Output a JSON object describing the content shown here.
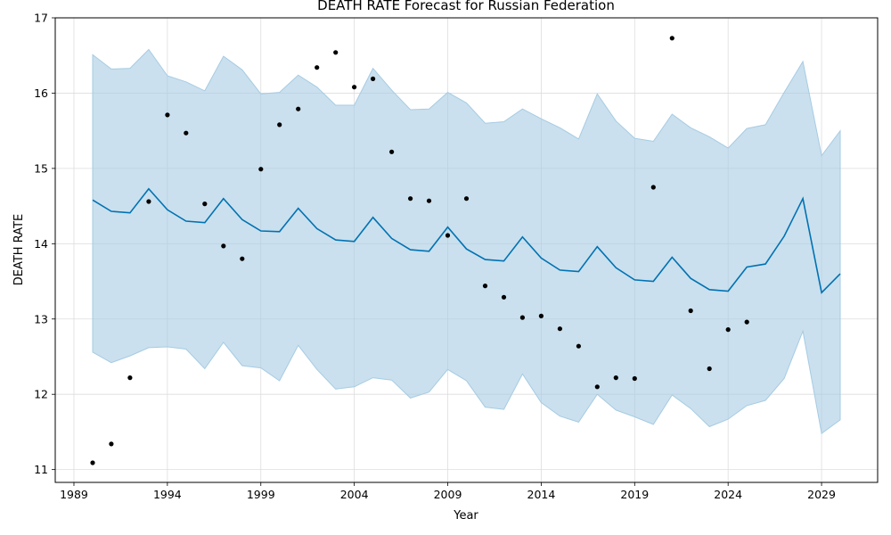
{
  "chart_data": {
    "type": "line",
    "title": "DEATH RATE Forecast for Russian Federation",
    "xlabel": "Year",
    "ylabel": "DEATH RATE",
    "xlim": [
      1988,
      2032
    ],
    "ylim": [
      10.83,
      17.0
    ],
    "x_ticks": [
      1989,
      1994,
      1999,
      2004,
      2009,
      2014,
      2019,
      2024,
      2029
    ],
    "y_ticks": [
      11,
      12,
      13,
      14,
      15,
      16,
      17
    ],
    "grid": true,
    "colors": {
      "forecast": "#0072B2",
      "band": "#a6cbe3",
      "actual": "#000000"
    },
    "series": [
      {
        "kind": "observed_points",
        "x": [
          1990,
          1991,
          1992,
          1993,
          1994,
          1995,
          1996,
          1997,
          1998,
          1999,
          2000,
          2001,
          2002,
          2003,
          2004,
          2005,
          2006,
          2007,
          2008,
          2009,
          2010,
          2011,
          2012,
          2013,
          2014,
          2015,
          2016,
          2017,
          2018,
          2019,
          2020,
          2021,
          2022,
          2023,
          2024,
          2025
        ],
        "y": [
          11.09,
          11.34,
          12.22,
          14.56,
          15.71,
          15.47,
          14.53,
          13.97,
          13.8,
          14.99,
          15.58,
          15.79,
          16.34,
          16.54,
          16.08,
          16.19,
          15.22,
          14.6,
          14.57,
          14.11,
          14.6,
          13.44,
          13.29,
          13.02,
          13.04,
          12.87,
          12.64,
          12.1,
          12.22,
          12.21,
          14.75,
          16.73,
          13.11,
          12.34,
          12.86,
          12.96
        ]
      },
      {
        "kind": "forecast_line",
        "x": [
          1990,
          1991,
          1992,
          1993,
          1994,
          1995,
          1996,
          1997,
          1998,
          1999,
          2000,
          2001,
          2002,
          2003,
          2004,
          2005,
          2006,
          2007,
          2008,
          2009,
          2010,
          2011,
          2012,
          2013,
          2014,
          2015,
          2016,
          2017,
          2018,
          2019,
          2020,
          2021,
          2022,
          2023,
          2024,
          2025,
          2026,
          2027,
          2028,
          2029,
          2030
        ],
        "y": [
          14.58,
          14.43,
          14.41,
          14.73,
          14.45,
          14.3,
          14.28,
          14.6,
          14.32,
          14.17,
          14.16,
          14.47,
          14.2,
          14.05,
          14.03,
          14.35,
          14.07,
          13.92,
          13.9,
          14.22,
          13.93,
          13.79,
          13.77,
          14.09,
          13.81,
          13.65,
          13.63,
          13.96,
          13.68,
          13.52,
          13.5,
          13.82,
          13.54,
          13.39,
          13.37,
          13.69,
          13.73,
          14.1,
          14.6,
          13.35,
          13.6
        ]
      },
      {
        "kind": "upper_bound",
        "y": [
          16.51,
          16.32,
          16.33,
          16.58,
          16.23,
          16.15,
          16.03,
          16.49,
          16.31,
          15.99,
          16.01,
          16.24,
          16.08,
          15.84,
          15.84,
          16.33,
          16.04,
          15.78,
          15.79,
          16.01,
          15.87,
          15.6,
          15.62,
          15.79,
          15.66,
          15.54,
          15.39,
          15.99,
          15.63,
          15.4,
          15.36,
          15.72,
          15.54,
          15.42,
          15.27,
          15.53,
          15.58,
          16.01,
          16.42,
          15.17,
          15.5
        ]
      },
      {
        "kind": "lower_bound",
        "y": [
          12.56,
          12.42,
          12.51,
          12.62,
          12.63,
          12.6,
          12.34,
          12.69,
          12.38,
          12.35,
          12.18,
          12.65,
          12.33,
          12.07,
          12.1,
          12.22,
          12.19,
          11.95,
          12.03,
          12.33,
          12.18,
          11.83,
          11.8,
          12.27,
          11.89,
          11.71,
          11.63,
          12.0,
          11.79,
          11.7,
          11.6,
          11.99,
          11.81,
          11.57,
          11.67,
          11.85,
          11.92,
          12.21,
          12.84,
          11.48,
          11.66
        ]
      }
    ]
  }
}
